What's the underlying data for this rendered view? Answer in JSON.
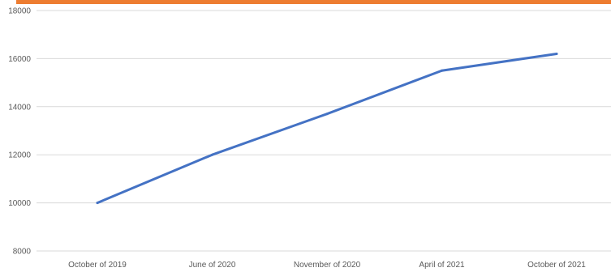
{
  "colors": {
    "accent_bar": "#ED7D31",
    "series_line": "#4472C4",
    "gridline": "#d9d9d9",
    "tick_text": "#595959"
  },
  "chart_data": {
    "type": "line",
    "title": "",
    "xlabel": "",
    "ylabel": "",
    "categories": [
      "October  of 2019",
      "June of 2020",
      "November of 2020",
      "April of 2021",
      "October of 2021"
    ],
    "series": [
      {
        "values": [
          10000,
          12000,
          13700,
          15500,
          16200
        ]
      }
    ],
    "ylim": [
      8000,
      18000
    ],
    "yticks": [
      8000,
      10000,
      12000,
      14000,
      16000,
      18000
    ],
    "grid": true,
    "legend": "none"
  }
}
